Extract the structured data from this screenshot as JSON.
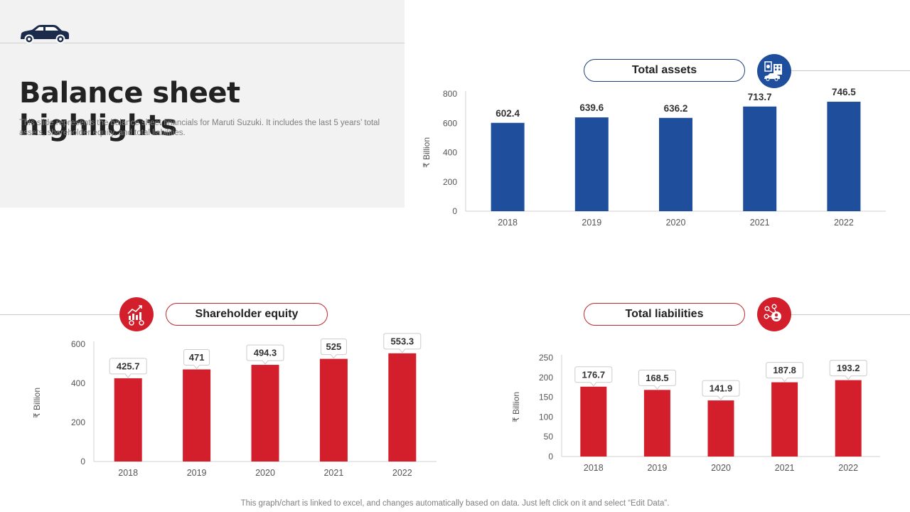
{
  "page": {
    "title": "Balance sheet highlights",
    "description": "This slide represents the balance sheet financials for Maruti Suzuki. It includes the last 5 years’ total assets, shareholder equity, and total liabilities.",
    "footnote": "This graph/chart is linked to excel, and changes automatically based on data. Just left click on it and select “Edit Data”."
  },
  "colors": {
    "navy": "#1f4e9c",
    "red": "#d21f2b",
    "panel": "#f2f2f2"
  },
  "icons": {
    "logo": "car-icon",
    "assets": "bank-car-icon",
    "equity": "investment-chart-icon",
    "liabilities": "network-person-icon"
  },
  "chart_data": [
    {
      "type": "bar",
      "title": "Total assets",
      "ylabel": "₹ Billion",
      "categories": [
        "2018",
        "2019",
        "2020",
        "2021",
        "2022"
      ],
      "values": [
        602.4,
        639.6,
        636.2,
        713.7,
        746.5
      ],
      "value_labels": [
        "602.4",
        "639.6",
        "636.2",
        "713.7",
        "746.5"
      ],
      "ylim": [
        0,
        800
      ],
      "yticks": [
        0,
        200,
        400,
        600,
        800
      ],
      "color": "#1f4e9c",
      "label_style": "plain",
      "grid": false
    },
    {
      "type": "bar",
      "title": "Shareholder equity",
      "ylabel": "₹ Billion",
      "categories": [
        "2018",
        "2019",
        "2020",
        "2021",
        "2022"
      ],
      "values": [
        425.7,
        471,
        494.3,
        525,
        553.3
      ],
      "value_labels": [
        "425.7",
        "471",
        "494.3",
        "525",
        "553.3"
      ],
      "ylim": [
        0,
        600
      ],
      "yticks": [
        0,
        200,
        400,
        600
      ],
      "color": "#d21f2b",
      "label_style": "callout",
      "grid": false
    },
    {
      "type": "bar",
      "title": "Total liabilities",
      "ylabel": "₹ Billion",
      "categories": [
        "2018",
        "2019",
        "2020",
        "2021",
        "2022"
      ],
      "values": [
        176.7,
        168.5,
        141.9,
        187.8,
        193.2
      ],
      "value_labels": [
        "176.7",
        "168.5",
        "141.9",
        "187.8",
        "193.2"
      ],
      "ylim": [
        0,
        250
      ],
      "yticks": [
        0,
        50,
        100,
        150,
        200,
        250
      ],
      "color": "#d21f2b",
      "label_style": "callout",
      "grid": false
    }
  ]
}
